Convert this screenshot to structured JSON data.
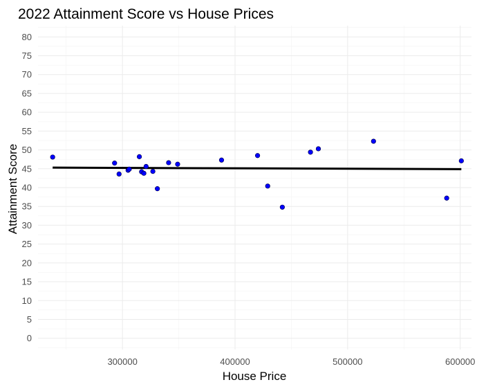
{
  "chart_data": {
    "type": "scatter",
    "title": "2022 Attainment Score vs House Prices",
    "xlabel": "House Price",
    "ylabel": "Attainment Score",
    "xlim": [
      225000,
      610000
    ],
    "ylim": [
      -3,
      83
    ],
    "x_ticks": [
      300000,
      400000,
      500000,
      600000
    ],
    "x_tick_labels": [
      "300000",
      "400000",
      "500000",
      "600000"
    ],
    "y_ticks": [
      0,
      5,
      10,
      15,
      20,
      25,
      30,
      35,
      40,
      45,
      50,
      55,
      60,
      65,
      70,
      75,
      80
    ],
    "y_tick_labels": [
      "0",
      "5",
      "10",
      "15",
      "20",
      "25",
      "30",
      "35",
      "40",
      "45",
      "50",
      "55",
      "60",
      "65",
      "70",
      "75",
      "80"
    ],
    "grid": true,
    "point_color": "#0000ff",
    "line_color": "#000000",
    "points": [
      {
        "x": 238000,
        "y": 48.1
      },
      {
        "x": 293000,
        "y": 46.5
      },
      {
        "x": 297000,
        "y": 43.6
      },
      {
        "x": 305000,
        "y": 44.6
      },
      {
        "x": 306000,
        "y": 44.9
      },
      {
        "x": 315000,
        "y": 48.2
      },
      {
        "x": 317000,
        "y": 44.2
      },
      {
        "x": 319000,
        "y": 43.8
      },
      {
        "x": 321000,
        "y": 45.6
      },
      {
        "x": 327000,
        "y": 44.3
      },
      {
        "x": 331000,
        "y": 39.7
      },
      {
        "x": 341000,
        "y": 46.6
      },
      {
        "x": 349000,
        "y": 46.2
      },
      {
        "x": 388000,
        "y": 47.3
      },
      {
        "x": 420000,
        "y": 48.5
      },
      {
        "x": 429000,
        "y": 40.4
      },
      {
        "x": 442000,
        "y": 34.8
      },
      {
        "x": 467000,
        "y": 49.4
      },
      {
        "x": 474000,
        "y": 50.3
      },
      {
        "x": 523000,
        "y": 52.3
      },
      {
        "x": 588000,
        "y": 37.2
      },
      {
        "x": 601000,
        "y": 47.1
      }
    ],
    "trend_line": {
      "x": [
        238000,
        601000
      ],
      "y": [
        45.3,
        44.9
      ]
    }
  }
}
